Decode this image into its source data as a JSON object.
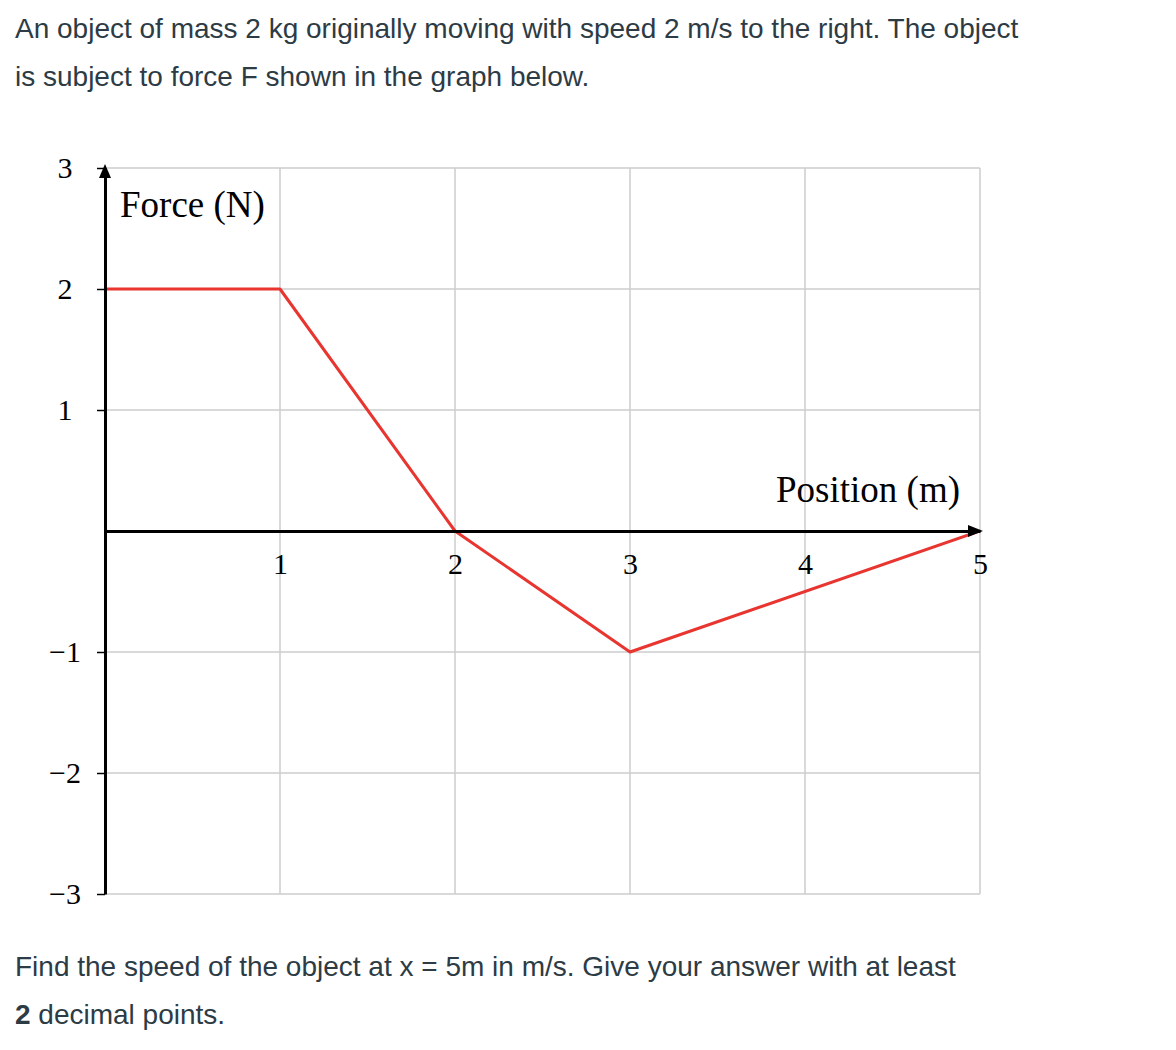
{
  "intro_lines": [
    "An object of mass 2 kg originally moving with speed 2 m/s to the right. The object",
    "is subject to force F shown in the graph below."
  ],
  "question_lines": [
    [
      {
        "text": "Find the speed of the object at x = 5m in m/s. Give your answer with at least",
        "bold": false
      }
    ],
    [
      {
        "text": "2",
        "bold": true
      },
      {
        "text": " decimal points.",
        "bold": false
      }
    ]
  ],
  "chart_data": {
    "type": "line",
    "xlabel": "Position (m)",
    "ylabel": "Force (N)",
    "x": [
      0,
      1,
      2,
      3,
      5
    ],
    "values": [
      2,
      2,
      0,
      -1,
      0
    ],
    "color": "#e8352f",
    "xlim": [
      0,
      5
    ],
    "ylim": [
      -3,
      3
    ],
    "xticks": [
      1,
      2,
      3,
      4,
      5
    ],
    "yticks": [
      {
        "value": -3,
        "label": "−3"
      },
      {
        "value": -2,
        "label": "−2"
      },
      {
        "value": -1,
        "label": "−1"
      },
      1,
      2,
      3
    ],
    "grid": true
  }
}
